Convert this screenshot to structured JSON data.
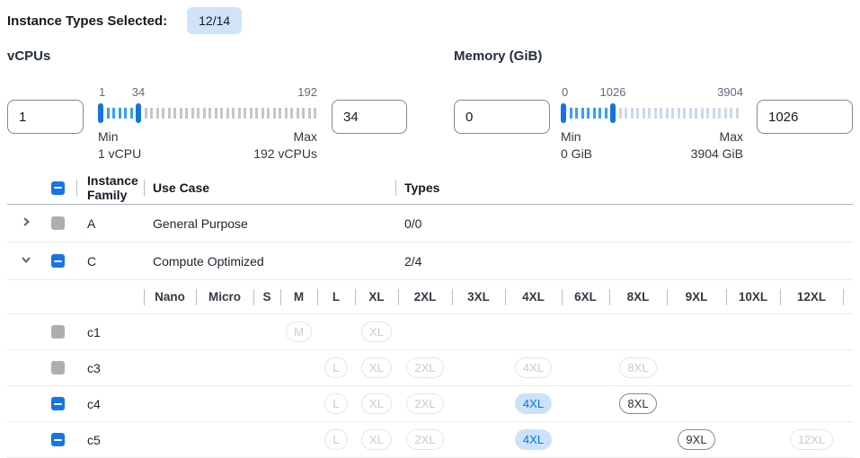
{
  "title": {
    "label": "Instance Types Selected:",
    "badge": "12/14"
  },
  "colors": {
    "accent": "#1773e8",
    "badge_bg": "#cfe4f8",
    "pill_selected_bg": "#cbe3fa",
    "pill_selected_text": "#0e72d3",
    "slider_handle": "#1673e0",
    "slider_tick_active": "#36a0f5"
  },
  "filters": {
    "vcpus": {
      "label": "vCPUs",
      "min_input": "1",
      "max_input": "34",
      "scale_start": "1",
      "scale_current": "34",
      "scale_end": "192",
      "min_label": "Min",
      "min_detail": "1 vCPU",
      "max_label": "Max",
      "max_detail": "192 vCPUs",
      "ticks_active": 5,
      "ticks_inactive": 30
    },
    "memory": {
      "label": "Memory (GiB)",
      "min_input": "0",
      "max_input": "1026",
      "scale_start": "0",
      "scale_current": "1026",
      "scale_end": "3904",
      "min_label": "Min",
      "min_detail": "0 GiB",
      "max_label": "Max",
      "max_detail": "3904 GiB",
      "ticks_active": 7,
      "ticks_inactive": 21
    }
  },
  "table": {
    "headers": {
      "family": "Instance Family",
      "use_case": "Use Case",
      "types": "Types"
    },
    "size_columns": [
      "Nano",
      "Micro",
      "S",
      "M",
      "L",
      "XL",
      "2XL",
      "3XL",
      "4XL",
      "6XL",
      "8XL",
      "9XL",
      "10XL",
      "12XL"
    ],
    "family_rows": [
      {
        "family": "A",
        "use_case": "General Purpose",
        "types": "0/0",
        "expanded": false,
        "checkbox": "gray"
      },
      {
        "family": "C",
        "use_case": "Compute Optimized",
        "types": "2/4",
        "expanded": true,
        "checkbox": "indeterminate"
      }
    ],
    "instance_rows": [
      {
        "name": "c1",
        "checkbox": "gray",
        "badges": [
          {
            "size": "M",
            "state": "disabled"
          },
          {
            "size": "XL",
            "state": "disabled"
          }
        ]
      },
      {
        "name": "c3",
        "checkbox": "gray",
        "badges": [
          {
            "size": "L",
            "state": "disabled"
          },
          {
            "size": "XL",
            "state": "disabled"
          },
          {
            "size": "2XL",
            "state": "disabled"
          },
          {
            "size": "4XL",
            "state": "disabled"
          },
          {
            "size": "8XL",
            "state": "disabled"
          }
        ]
      },
      {
        "name": "c4",
        "checkbox": "indeterminate",
        "badges": [
          {
            "size": "L",
            "state": "disabled"
          },
          {
            "size": "XL",
            "state": "disabled"
          },
          {
            "size": "2XL",
            "state": "disabled"
          },
          {
            "size": "4XL",
            "state": "selected"
          },
          {
            "size": "8XL",
            "state": "enabled"
          }
        ]
      },
      {
        "name": "c5",
        "checkbox": "indeterminate",
        "badges": [
          {
            "size": "L",
            "state": "disabled"
          },
          {
            "size": "XL",
            "state": "disabled"
          },
          {
            "size": "2XL",
            "state": "disabled"
          },
          {
            "size": "4XL",
            "state": "selected"
          },
          {
            "size": "9XL",
            "state": "enabled"
          },
          {
            "size": "12XL",
            "state": "disabled"
          }
        ]
      }
    ]
  }
}
